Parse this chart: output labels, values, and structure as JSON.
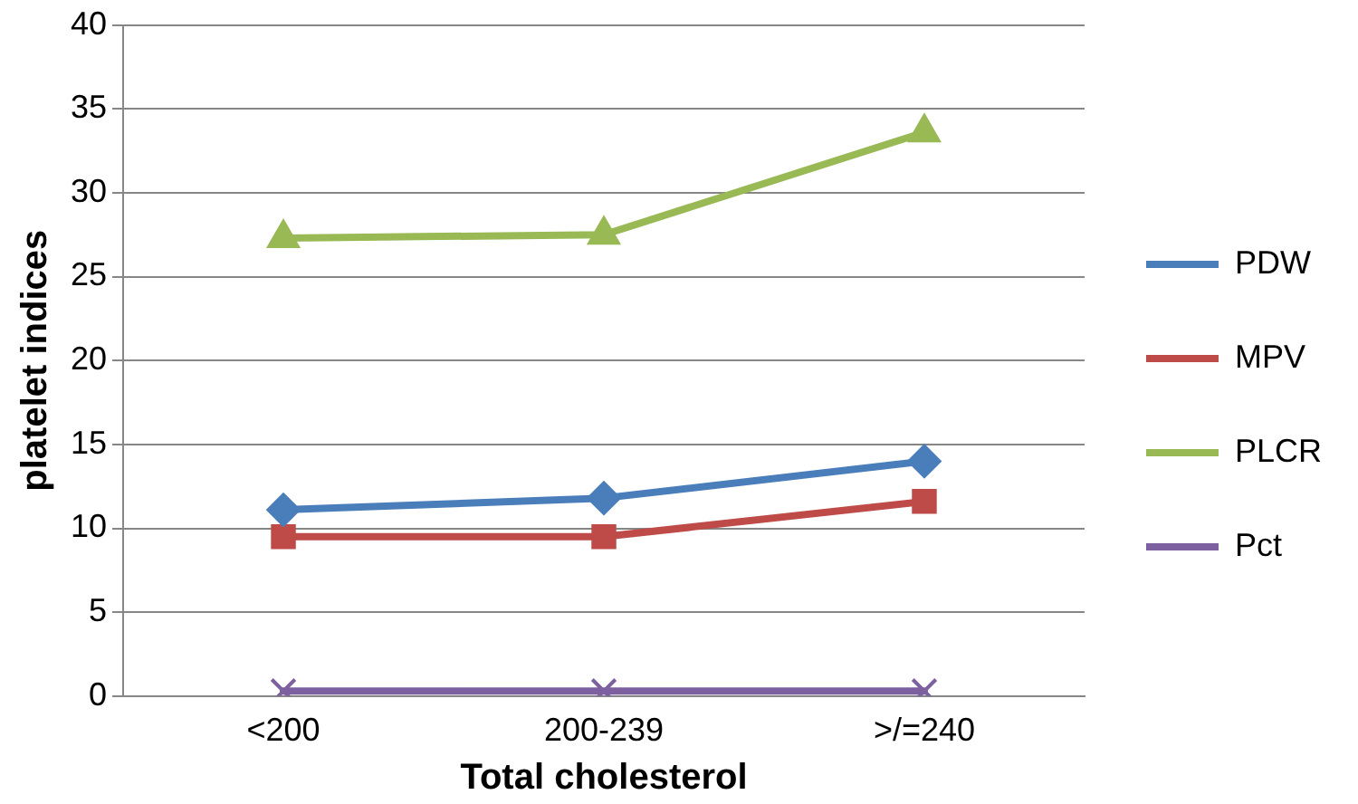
{
  "chart_data": {
    "type": "line",
    "xlabel": "Total cholesterol",
    "ylabel": "platelet indices",
    "categories": [
      "<200",
      "200-239",
      ">/=240"
    ],
    "series": [
      {
        "name": "PDW",
        "color": "#4a7ebb",
        "marker": "diamond",
        "values": [
          11.1,
          11.8,
          14.0
        ]
      },
      {
        "name": "MPV",
        "color": "#be4b48",
        "marker": "square",
        "values": [
          9.5,
          9.5,
          11.6
        ]
      },
      {
        "name": "PLCR",
        "color": "#98b954",
        "marker": "triangle",
        "values": [
          27.3,
          27.5,
          33.6
        ]
      },
      {
        "name": "Pct",
        "color": "#7d60a0",
        "marker": "cross",
        "values": [
          0.3,
          0.3,
          0.3
        ]
      }
    ],
    "ylim": [
      0,
      40
    ],
    "yticks": [
      0,
      5,
      10,
      15,
      20,
      25,
      30,
      35,
      40
    ],
    "grid": "y",
    "legend": "right"
  }
}
